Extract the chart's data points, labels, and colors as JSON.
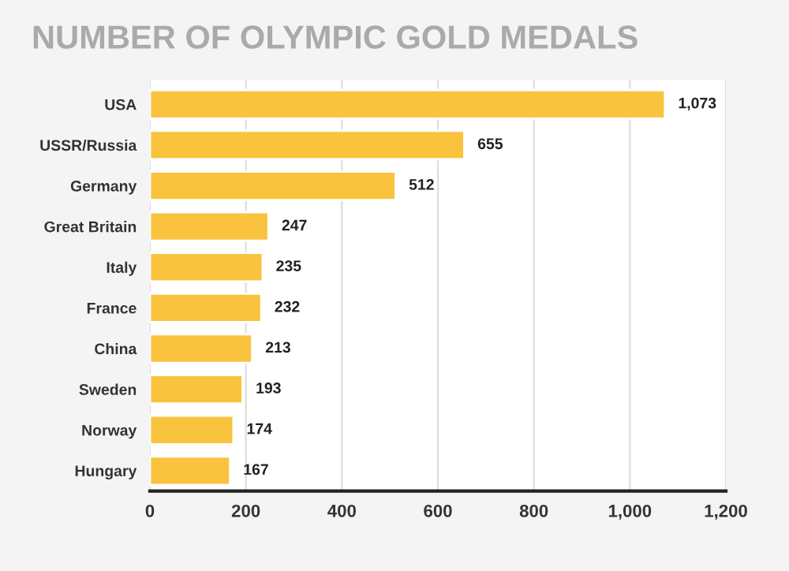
{
  "chart_data": {
    "type": "bar",
    "orientation": "horizontal",
    "title": "NUMBER OF OLYMPIC GOLD MEDALS",
    "categories": [
      "USA",
      "USSR/Russia",
      "Germany",
      "Great Britain",
      "Italy",
      "France",
      "China",
      "Sweden",
      "Norway",
      "Hungary"
    ],
    "values": [
      1073,
      655,
      512,
      247,
      235,
      232,
      213,
      193,
      174,
      167
    ],
    "value_labels": [
      "1,073",
      "655",
      "512",
      "247",
      "235",
      "232",
      "213",
      "193",
      "174",
      "167"
    ],
    "color": "#f9c33e",
    "xlim": [
      0,
      1200
    ],
    "xticks": [
      {
        "value": 0,
        "label": "0"
      },
      {
        "value": 200,
        "label": "200"
      },
      {
        "value": 400,
        "label": "400"
      },
      {
        "value": 600,
        "label": "600"
      },
      {
        "value": 800,
        "label": "800"
      },
      {
        "value": 1000,
        "label": "1,000"
      },
      {
        "value": 1200,
        "label": "1,200"
      }
    ],
    "grid": "x"
  }
}
